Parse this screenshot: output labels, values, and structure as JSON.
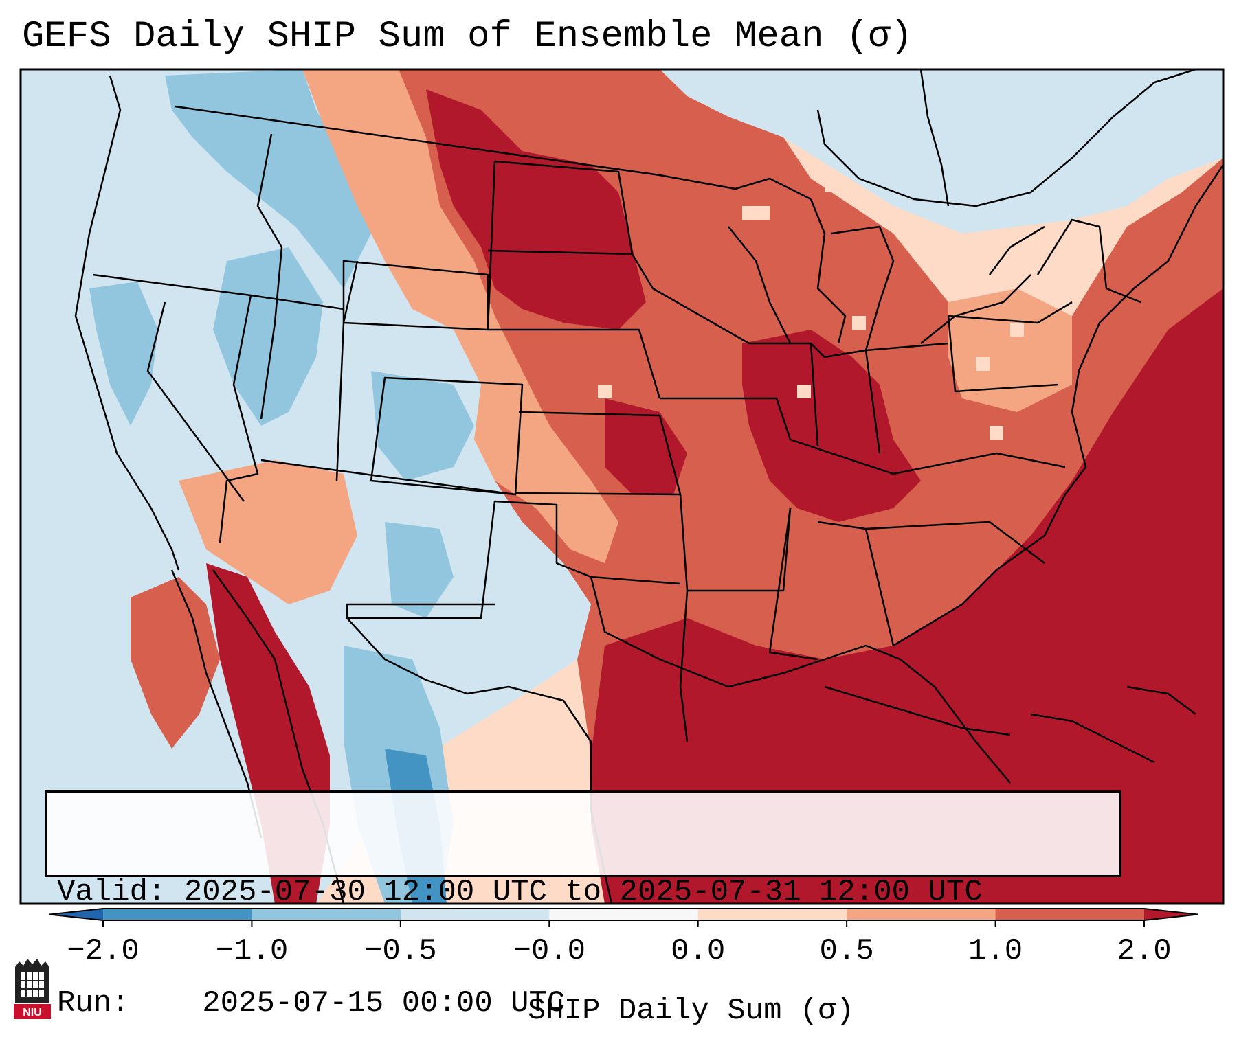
{
  "title": "GEFS Daily SHIP Sum of Ensemble Mean (σ)",
  "info": {
    "valid_label": "Valid:",
    "valid_value": "2025-07-30 12:00 UTC to 2025-07-31 12:00 UTC",
    "run_label": "Run:",
    "run_value": "2025-07-15 00:00 UTC"
  },
  "colorbar": {
    "label": "SHIP Daily Sum (σ)",
    "ticks": [
      "−2.0",
      "−1.0",
      "−0.5",
      "−0.0",
      "0.0",
      "0.5",
      "1.0",
      "2.0"
    ],
    "colors": [
      "#2166ac",
      "#4393c3",
      "#92c5de",
      "#d1e5f0",
      "#f7f7f7",
      "#fddbc7",
      "#f4a582",
      "#d6604d",
      "#b2182b"
    ]
  },
  "logo_text": "NIU",
  "colors": {
    "ocean_west": "#d1e5f0",
    "ocean_east": "#b2182b"
  }
}
